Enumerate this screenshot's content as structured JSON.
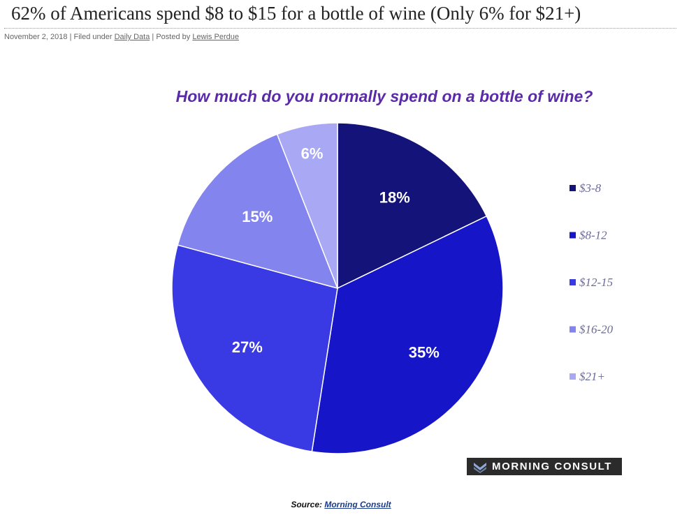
{
  "post": {
    "title": "62% of Americans spend $8 to $15 for a bottle of wine (Only 6% for $21+)",
    "date": "November 2, 2018",
    "filed_prefix": "Filed under",
    "category": "Daily Data",
    "posted_prefix": "Posted by",
    "author": "Lewis Perdue",
    "separator": "|"
  },
  "brand": {
    "name": "MORNING CONSULT",
    "mark": "chevron-logo-icon"
  },
  "source": {
    "label": "Source:",
    "link": "Morning Consult"
  },
  "colors": {
    "title": "#5b2aa8",
    "slices": [
      "#13137a",
      "#1616c8",
      "#3a3ae4",
      "#8484ee",
      "#a8a8f4"
    ]
  },
  "chart_data": {
    "type": "pie",
    "title": "How much do you normally spend on a bottle of wine?",
    "categories": [
      "$3-8",
      "$8-12",
      "$12-15",
      "$16-20",
      "$21+"
    ],
    "values": [
      18,
      35,
      27,
      15,
      6
    ],
    "value_labels": [
      "18%",
      "35%",
      "27%",
      "15%",
      "6%"
    ],
    "start_angle": "12 o'clock",
    "direction": "clockwise",
    "legend_position": "right"
  }
}
